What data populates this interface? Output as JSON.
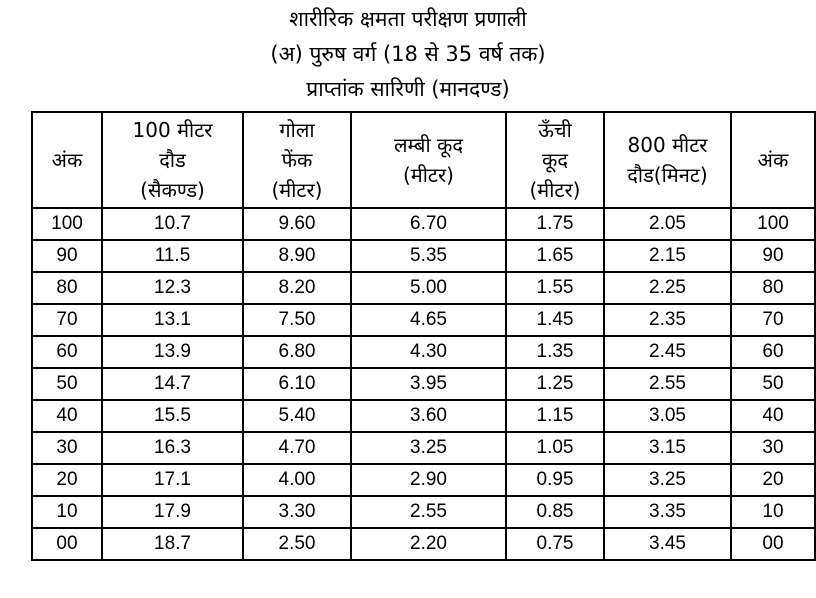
{
  "title": {
    "line1": "शारीरिक क्षमता परीक्षण प्रणाली",
    "line2": "(अ) पुरुष वर्ग (18 से 35 वर्ष तक)",
    "line3": "प्राप्तांक सारिणी (मानदण्ड)"
  },
  "table": {
    "headers": [
      [
        "अंक"
      ],
      [
        "100 मीटर",
        "दौड",
        "(सैकण्ड)"
      ],
      [
        "गोला",
        "फेंक",
        "(मीटर)"
      ],
      [
        "लम्बी कूद",
        "(मीटर)"
      ],
      [
        "ऊँची",
        "कूद",
        "(मीटर)"
      ],
      [
        "800 मीटर",
        "दौड(मिनट)"
      ],
      [
        "अंक"
      ]
    ],
    "rows": [
      [
        "100",
        "10.7",
        "9.60",
        "6.70",
        "1.75",
        "2.05",
        "100"
      ],
      [
        "90",
        "11.5",
        "8.90",
        "5.35",
        "1.65",
        "2.15",
        "90"
      ],
      [
        "80",
        "12.3",
        "8.20",
        "5.00",
        "1.55",
        "2.25",
        "80"
      ],
      [
        "70",
        "13.1",
        "7.50",
        "4.65",
        "1.45",
        "2.35",
        "70"
      ],
      [
        "60",
        "13.9",
        "6.80",
        "4.30",
        "1.35",
        "2.45",
        "60"
      ],
      [
        "50",
        "14.7",
        "6.10",
        "3.95",
        "1.25",
        "2.55",
        "50"
      ],
      [
        "40",
        "15.5",
        "5.40",
        "3.60",
        "1.15",
        "3.05",
        "40"
      ],
      [
        "30",
        "16.3",
        "4.70",
        "3.25",
        "1.05",
        "3.15",
        "30"
      ],
      [
        "20",
        "17.1",
        "4.00",
        "2.90",
        "0.95",
        "3.25",
        "20"
      ],
      [
        "10",
        "17.9",
        "3.30",
        "2.55",
        "0.85",
        "3.35",
        "10"
      ],
      [
        "00",
        "18.7",
        "2.50",
        "2.20",
        "0.75",
        "3.45",
        "00"
      ]
    ]
  }
}
